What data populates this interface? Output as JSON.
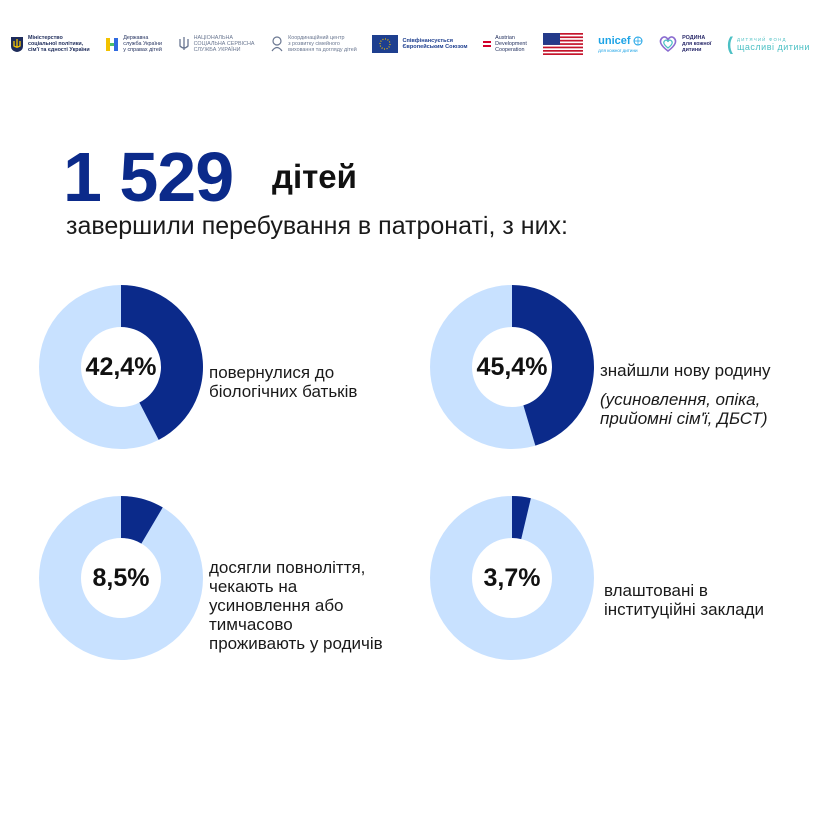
{
  "logos": [
    {
      "icon": "trident-emblem-icon",
      "text": "Міністерство\nсоціальної політики,\nсім'ї та єдності України",
      "style": "bold"
    },
    {
      "icon": "children-service-icon",
      "text": "Державна\nслужба України\nу справах дітей",
      "style": "plain"
    },
    {
      "icon": "trident-outline-icon",
      "text": "НАЦІОНАЛЬНА\nСОЦІАЛЬНА СЕРВІСНА\nСЛУЖБА УКРАЇНИ",
      "style": "grey"
    },
    {
      "icon": "coordination-centre-icon",
      "text": "Координаційний центр\nз розвитку сімейного\nвиховання та догляду дітей",
      "style": "grey"
    },
    {
      "icon": "eu-flag-icon",
      "text": "Співфінансується\nЄвропейським Союзом",
      "style": "eu"
    },
    {
      "icon": "austria-flag-icon",
      "text": "Austrian\nDevelopment\nCooperation",
      "style": "plain"
    },
    {
      "icon": "usa-flag-icon",
      "text": "",
      "style": "plain"
    },
    {
      "icon": "unicef-logo-icon",
      "text": "unicef",
      "sub": "для кожної дитини",
      "style": "unicef"
    },
    {
      "icon": "heart-family-icon",
      "text": "РОДИНА\nдля кожної\nдитини",
      "style": "rodyna"
    },
    {
      "icon": "parentheses-icon",
      "text": "щасливі дитини",
      "top": "ДИТЯЧИЙ ФОНД",
      "style": "happy"
    }
  ],
  "headline": {
    "number": "1 529",
    "unit": "дітей",
    "subtitle": "завершили перебування в патронаті, з них:"
  },
  "colors": {
    "dark": "#0b2a8a",
    "light": "#c8e1ff",
    "title_blue": "#0b2a8a"
  },
  "chart_data": {
    "type": "pie",
    "variant": "donut",
    "total": 1529,
    "series": [
      {
        "label": "повернулися до біологічних батьків",
        "value": 42.4,
        "display": "42,4%"
      },
      {
        "label": "знайшли нову родину",
        "note": "(усиновлення, опіка, прийомні сім'ї, ДБСТ)",
        "value": 45.4,
        "display": "45,4%"
      },
      {
        "label": "досягли повноліття, чекають на усиновлення або тимчасово проживають у родичів",
        "value": 8.5,
        "display": "8,5%"
      },
      {
        "label": "влаштовані в інституційні заклади",
        "value": 3.7,
        "display": "3,7%"
      }
    ]
  },
  "cards": [
    {
      "pct": "42,4%",
      "desc": "повернулися до\nбіологічних батьків",
      "note": ""
    },
    {
      "pct": "45,4%",
      "desc": "знайшли нову родину",
      "note": "(усиновлення, опіка,\nприйомні сім'ї, ДБСТ)"
    },
    {
      "pct": "8,5%",
      "desc": "досягли повноліття,\nчекають на\nусиновлення або\nтимчасово\nпроживають у родичів",
      "note": ""
    },
    {
      "pct": "3,7%",
      "desc": "влаштовані в\nінституційні заклади",
      "note": ""
    }
  ]
}
